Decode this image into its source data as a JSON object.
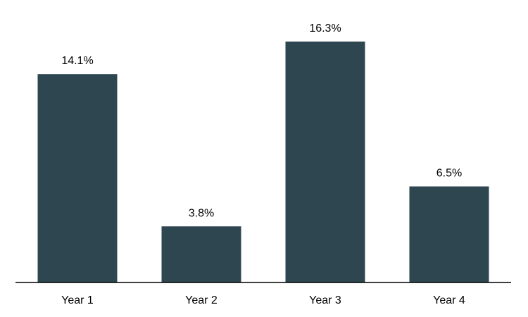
{
  "chart_data": {
    "type": "bar",
    "categories": [
      "Year 1",
      "Year 2",
      "Year 3",
      "Year 4"
    ],
    "values": [
      14.1,
      3.8,
      16.3,
      6.5
    ],
    "data_labels": [
      "14.1%",
      "3.8%",
      "16.3%",
      "6.5%"
    ],
    "title": "",
    "xlabel": "",
    "ylabel": "",
    "ylim": [
      0,
      16.3
    ],
    "bar_color": "#2e4650",
    "axis_color": "#000000",
    "grid": false,
    "legend": "none"
  }
}
